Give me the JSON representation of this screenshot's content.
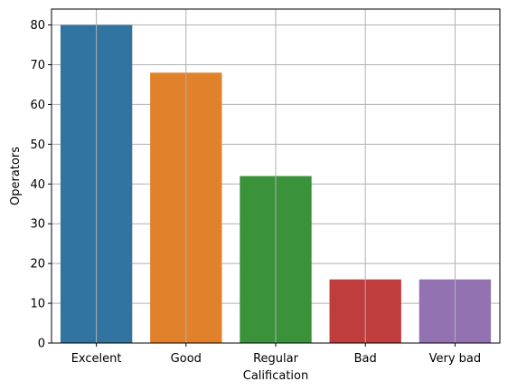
{
  "chart_data": {
    "type": "bar",
    "title": "",
    "xlabel": "Calification",
    "ylabel": "Operators",
    "categories": [
      "Excelent",
      "Good",
      "Regular",
      "Bad",
      "Very bad"
    ],
    "values": [
      80,
      68,
      42,
      16,
      16
    ],
    "colors": [
      "#3274a1",
      "#e1812c",
      "#3a923a",
      "#c03d3e",
      "#9372b2"
    ],
    "ylim": [
      0,
      84
    ],
    "yticks": [
      0,
      10,
      20,
      30,
      40,
      50,
      60,
      70,
      80
    ],
    "grid": true
  }
}
